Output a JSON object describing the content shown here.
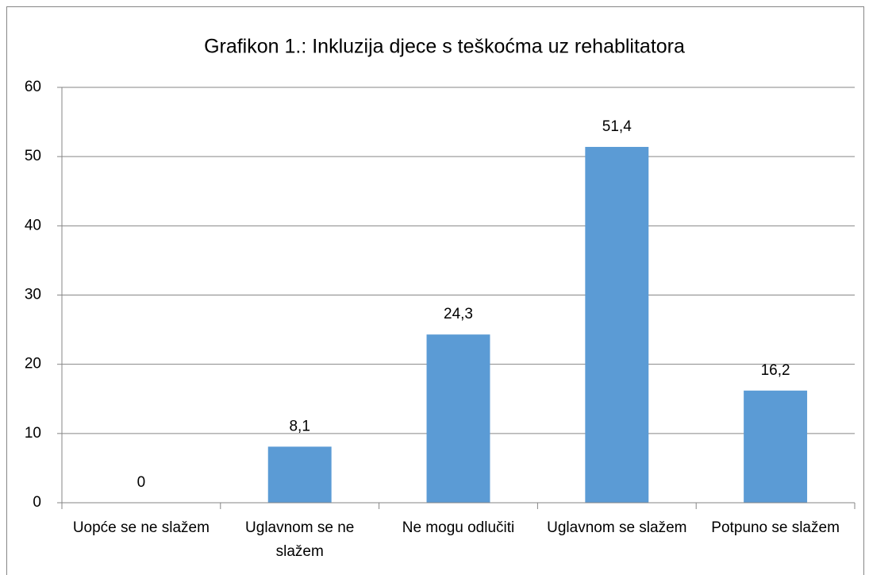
{
  "chart_data": {
    "type": "bar",
    "title": "Grafikon 1.: Inkluzija djece s teškoćma uz rehablitatora",
    "categories": [
      "Uopće se ne slažem",
      "Uglavnom se ne slažem",
      "Ne mogu odlučiti",
      "Uglavnom se slažem",
      "Potpuno se slažem"
    ],
    "values": [
      0,
      8.1,
      24.3,
      51.4,
      16.2
    ],
    "value_labels": [
      "0",
      "8,1",
      "24,3",
      "51,4",
      "16,2"
    ],
    "color": "#5b9bd5",
    "ylim": [
      0,
      60
    ],
    "yticks": [
      0,
      10,
      20,
      30,
      40,
      50,
      60
    ],
    "grid": true
  }
}
